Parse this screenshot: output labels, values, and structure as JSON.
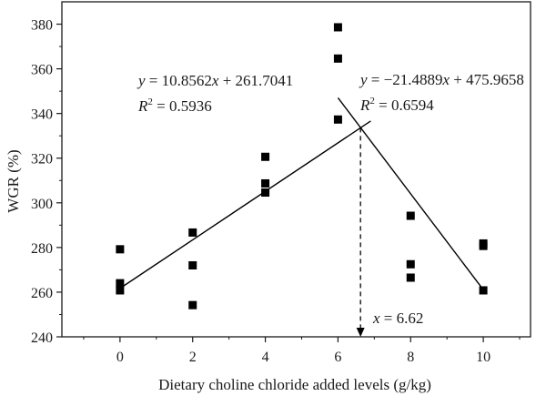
{
  "chart_data": {
    "type": "scatter",
    "title": "",
    "xlabel": "Dietary choline chloride added levels (g/kg)",
    "ylabel": "WGR (%)",
    "xlim": [
      -1.6,
      11.3
    ],
    "ylim": [
      240,
      390
    ],
    "xticks": [
      0,
      2,
      4,
      6,
      8,
      10
    ],
    "yticks": [
      240,
      260,
      280,
      300,
      320,
      340,
      360,
      380
    ],
    "xtick_labels": [
      "0",
      "2",
      "4",
      "6",
      "8",
      "10"
    ],
    "ytick_labels": [
      "240",
      "260",
      "280",
      "300",
      "320",
      "340",
      "360",
      "380"
    ],
    "grid": false,
    "marker": "square",
    "color": "#000000",
    "series": [
      {
        "points": [
          [
            0,
            279.2
          ],
          [
            0,
            264.0
          ],
          [
            0,
            260.8
          ],
          [
            2,
            286.7
          ],
          [
            2,
            272.0
          ],
          [
            2,
            254.2
          ],
          [
            4,
            320.6
          ],
          [
            4,
            308.7
          ],
          [
            4,
            304.6
          ],
          [
            6,
            378.6
          ],
          [
            6,
            364.6
          ],
          [
            6,
            337.3
          ],
          [
            8,
            294.2
          ],
          [
            8,
            272.5
          ],
          [
            8,
            266.5
          ],
          [
            10,
            281.8
          ],
          [
            10,
            280.7
          ],
          [
            10,
            260.8
          ]
        ]
      }
    ],
    "fits": [
      {
        "slope": 10.8562,
        "intercept": 261.7041,
        "x_range": [
          0,
          6.9
        ],
        "equation": {
          "lhs": "y",
          "eq": " = 10.8562",
          "var": "x",
          "rest": " + 261.7041"
        },
        "r2": {
          "label": "R",
          "sup": "2",
          "value": " = 0.5936"
        }
      },
      {
        "slope": -21.4889,
        "intercept": 475.9658,
        "x_range": [
          6.0,
          10.0
        ],
        "equation": {
          "lhs": "y",
          "eq": " = −21.4889",
          "var": "x",
          "rest": " + 475.9658"
        },
        "r2": {
          "label": "R",
          "sup": "2",
          "value": " = 0.6594"
        }
      }
    ],
    "breakpoint": {
      "x": 6.62,
      "y_from": 333.6,
      "y_to": 240,
      "label_var": "x",
      "label_value": " = 6.62"
    }
  }
}
